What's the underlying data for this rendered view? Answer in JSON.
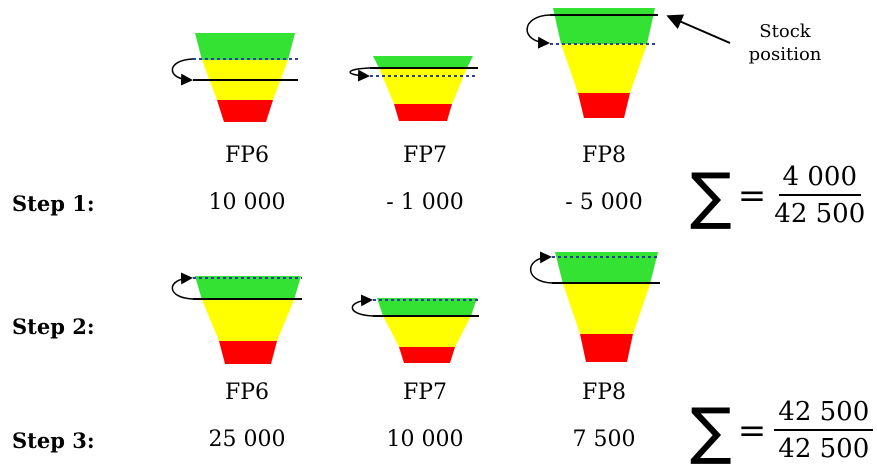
{
  "annotation": {
    "line1": "Stock",
    "line2": "position"
  },
  "labels": {
    "row1": [
      "FP6",
      "FP7",
      "FP8"
    ],
    "row2": [
      "FP6",
      "FP7",
      "FP8"
    ]
  },
  "steps": [
    {
      "label": "Step 1:",
      "values": [
        "10 000",
        "- 1 000",
        "- 5 000"
      ]
    },
    {
      "label": "Step 2:"
    },
    {
      "label": "Step 3:",
      "values": [
        "25 000",
        "10 000",
        "7 500"
      ]
    }
  ],
  "sums": [
    {
      "symbol": "∑",
      "equals": "=",
      "numerator": "4 000",
      "denominator": "42 500"
    },
    {
      "symbol": "∑",
      "equals": "=",
      "numerator": "42 500",
      "denominator": "42 500"
    }
  ],
  "colors": {
    "green": "#33e233",
    "yellow": "#ffff00",
    "red": "#ff0000",
    "line": "#000000",
    "dotted": "#2a3f9a"
  }
}
